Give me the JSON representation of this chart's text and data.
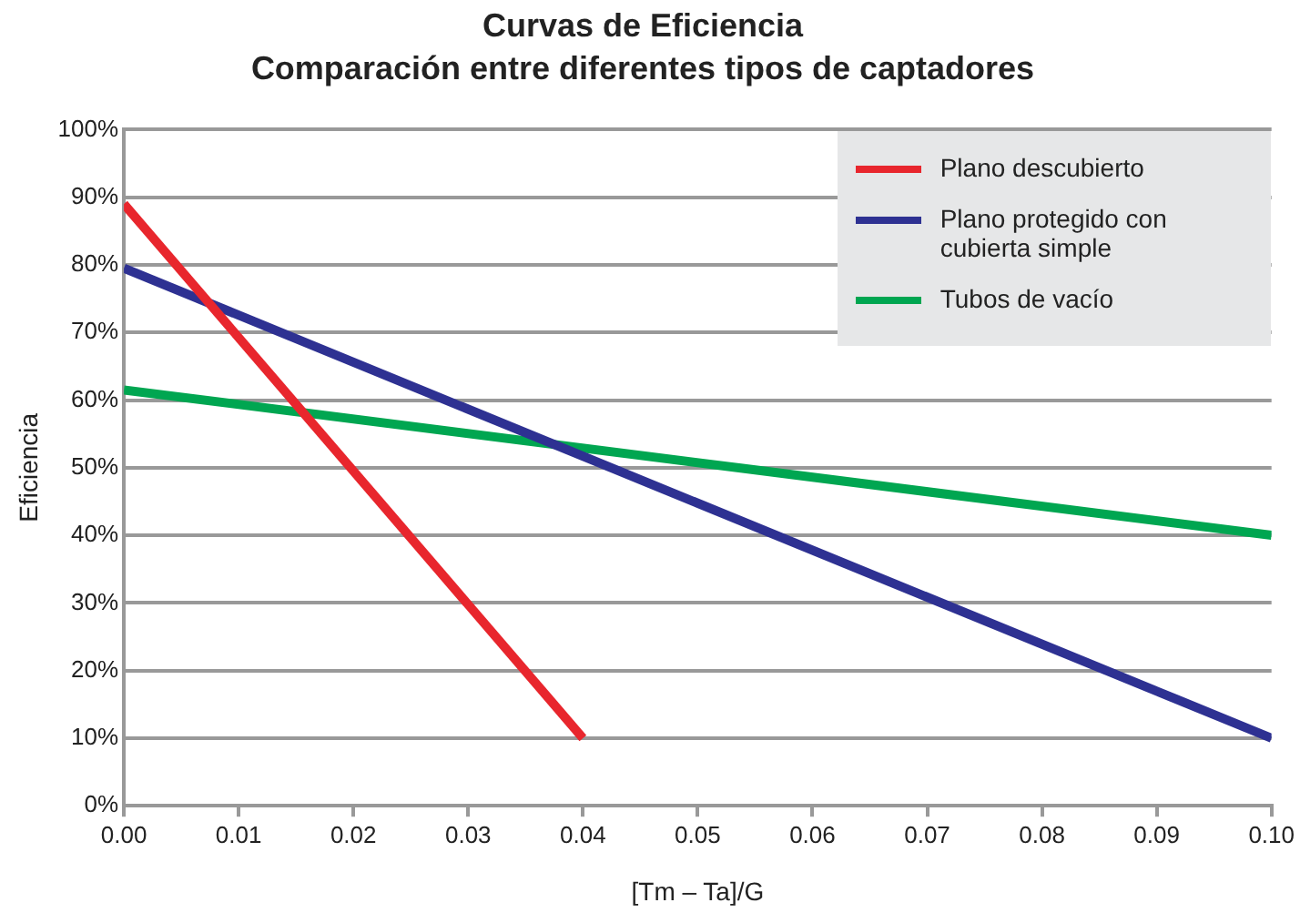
{
  "chart_data": {
    "type": "line",
    "title": "Curvas de Eficiencia",
    "subtitle": "Comparación entre diferentes tipos de captadores",
    "xlabel": "[Tm – Ta]/G",
    "ylabel": "Eficiencia",
    "series": [
      {
        "name": "Plano descubierto",
        "color": "#e8262d",
        "x": [
          0,
          0.04
        ],
        "values": [
          89,
          10
        ]
      },
      {
        "name": "Plano protegido con cubierta simple",
        "color": "#2e3192",
        "x": [
          0,
          0.1
        ],
        "values": [
          79.5,
          10
        ]
      },
      {
        "name": "Tubos de vacío",
        "color": "#00a651",
        "x": [
          0,
          0.1
        ],
        "values": [
          61.5,
          40
        ]
      }
    ],
    "xlim": [
      0,
      0.1
    ],
    "xticks": [
      {
        "value": 0,
        "label": "0.00"
      },
      {
        "value": 0.01,
        "label": "0.01"
      },
      {
        "value": 0.02,
        "label": "0.02"
      },
      {
        "value": 0.03,
        "label": "0.03"
      },
      {
        "value": 0.04,
        "label": "0.04"
      },
      {
        "value": 0.05,
        "label": "0.05"
      },
      {
        "value": 0.06,
        "label": "0.06"
      },
      {
        "value": 0.07,
        "label": "0.07"
      },
      {
        "value": 0.08,
        "label": "0.08"
      },
      {
        "value": 0.09,
        "label": "0.09"
      },
      {
        "value": 0.1,
        "label": "0.10"
      }
    ],
    "ylim": [
      0,
      100
    ],
    "yticks": [
      {
        "value": 0,
        "label": "0%"
      },
      {
        "value": 10,
        "label": "10%"
      },
      {
        "value": 20,
        "label": "20%"
      },
      {
        "value": 30,
        "label": "30%"
      },
      {
        "value": 40,
        "label": "40%"
      },
      {
        "value": 50,
        "label": "50%"
      },
      {
        "value": 60,
        "label": "60%"
      },
      {
        "value": 70,
        "label": "70%"
      },
      {
        "value": 80,
        "label": "80%"
      },
      {
        "value": 90,
        "label": "90%"
      },
      {
        "value": 100,
        "label": "100%"
      }
    ],
    "grid": "y",
    "legend": "top right",
    "marker": "none",
    "line_style": "solid"
  }
}
